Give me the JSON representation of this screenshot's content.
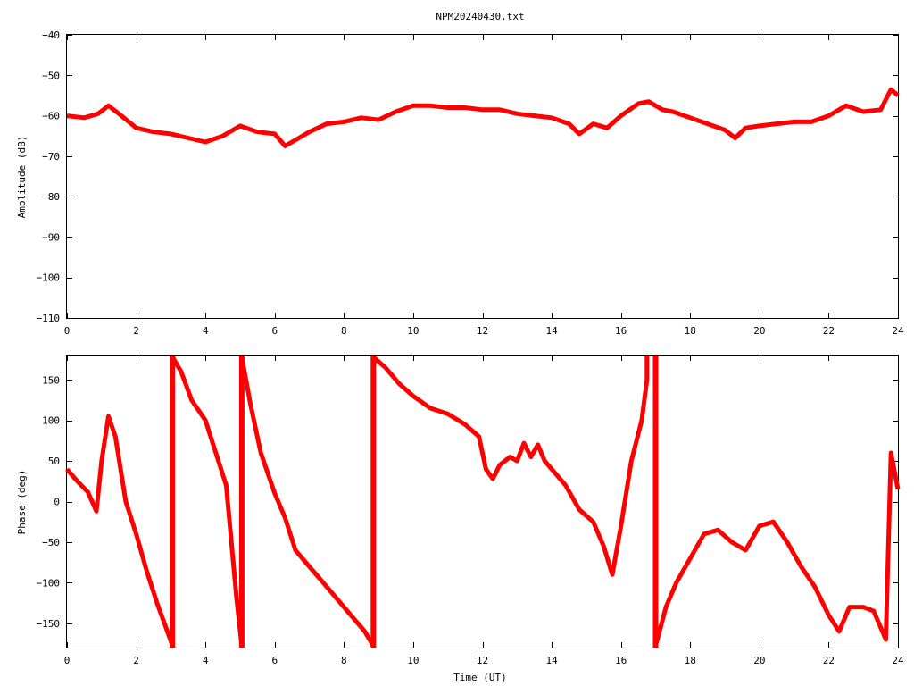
{
  "title": "NPM20240430.txt",
  "chart_data": [
    {
      "type": "line",
      "ylabel": "Amplitude (dB)",
      "xlabel": "",
      "xlim": [
        0,
        24
      ],
      "ylim": [
        -110,
        -40
      ],
      "xticks": [
        "0",
        "2",
        "4",
        "6",
        "8",
        "10",
        "12",
        "14",
        "16",
        "18",
        "20",
        "22",
        "24"
      ],
      "yticks": [
        "−40",
        "−50",
        "−60",
        "−70",
        "−80",
        "−90",
        "−100",
        "−110"
      ],
      "grid": false,
      "color": "#ff0000",
      "series": [
        {
          "x": [
            0,
            0.5,
            0.9,
            1.2,
            1.5,
            2.0,
            2.5,
            3.0,
            3.5,
            4.0,
            4.5,
            5.0,
            5.5,
            6.0,
            6.3,
            6.7,
            7.0,
            7.5,
            8.0,
            8.5,
            9.0,
            9.5,
            10.0,
            10.5,
            11.0,
            11.5,
            12.0,
            12.5,
            13.0,
            13.5,
            14.0,
            14.5,
            14.8,
            15.2,
            15.6,
            16.0,
            16.5,
            16.8,
            17.2,
            17.5,
            18.0,
            18.5,
            19.0,
            19.3,
            19.6,
            20.0,
            20.5,
            21.0,
            21.5,
            22.0,
            22.5,
            23.0,
            23.5,
            23.8,
            24.0
          ],
          "values": [
            -60,
            -60.5,
            -59.5,
            -57.5,
            -59.5,
            -63,
            -64,
            -64.5,
            -65.5,
            -66.5,
            -65,
            -62.5,
            -64,
            -64.5,
            -67.5,
            -65.5,
            -64,
            -62,
            -61.5,
            -60.5,
            -61,
            -59,
            -57.5,
            -57.5,
            -58,
            -58,
            -58.5,
            -58.5,
            -59.5,
            -60,
            -60.5,
            -62,
            -64.5,
            -62,
            -63,
            -60,
            -57,
            -56.5,
            -58.5,
            -59,
            -60.5,
            -62,
            -63.5,
            -65.5,
            -63,
            -62.5,
            -62,
            -61.5,
            -61.5,
            -60,
            -57.5,
            -59,
            -58.5,
            -53.5,
            -55
          ]
        }
      ]
    },
    {
      "type": "line",
      "ylabel": "Phase (deg)",
      "xlabel": "Time (UT)",
      "xlim": [
        0,
        24
      ],
      "ylim": [
        -180,
        180
      ],
      "xticks": [
        "0",
        "2",
        "4",
        "6",
        "8",
        "10",
        "12",
        "14",
        "16",
        "18",
        "20",
        "22",
        "24"
      ],
      "yticks": [
        "150",
        "100",
        "50",
        "0",
        "−50",
        "−100",
        "−150"
      ],
      "grid": false,
      "color": "#ff0000",
      "series": [
        {
          "x": [
            0,
            0.3,
            0.6,
            0.85,
            1.0,
            1.2,
            1.4,
            1.7,
            2.0,
            2.3,
            2.6,
            2.9,
            3.05,
            3.05,
            3.3,
            3.6,
            4.0,
            4.3,
            4.6,
            4.9,
            5.05,
            5.05,
            5.3,
            5.6,
            6.0,
            6.3,
            6.6,
            7.0,
            7.4,
            7.8,
            8.2,
            8.6,
            8.85,
            8.85,
            9.2,
            9.6,
            10.0,
            10.5,
            11.0,
            11.5,
            11.9,
            12.1,
            12.3,
            12.5,
            12.8,
            13.0,
            13.2,
            13.4,
            13.6,
            13.8,
            14.0,
            14.4,
            14.8,
            15.2,
            15.5,
            15.75,
            16.0,
            16.3,
            16.6,
            16.75,
            16.75,
            17.0,
            17.3,
            17.6,
            18.0,
            18.4,
            18.8,
            19.2,
            19.6,
            20.0,
            20.4,
            20.8,
            21.2,
            21.6,
            22.0,
            22.3,
            22.6,
            23.0,
            23.3,
            23.5,
            23.65,
            23.8,
            24.0
          ],
          "values": [
            40,
            25,
            12,
            -12,
            50,
            105,
            80,
            0,
            -40,
            -85,
            -125,
            -160,
            -178,
            178,
            160,
            125,
            100,
            60,
            20,
            -120,
            -178,
            178,
            120,
            60,
            10,
            -20,
            -60,
            -80,
            -100,
            -120,
            -140,
            -160,
            -178,
            178,
            165,
            145,
            130,
            115,
            108,
            95,
            80,
            40,
            28,
            45,
            55,
            50,
            72,
            55,
            70,
            50,
            40,
            20,
            -10,
            -25,
            -55,
            -90,
            -30,
            50,
            100,
            150,
            180,
            -178,
            -130,
            -100,
            -70,
            -40,
            -35,
            -50,
            -60,
            -30,
            -25,
            -50,
            -80,
            -105,
            -140,
            -160,
            -130,
            -130,
            -135,
            -155,
            -170,
            60,
            15
          ]
        }
      ]
    }
  ]
}
